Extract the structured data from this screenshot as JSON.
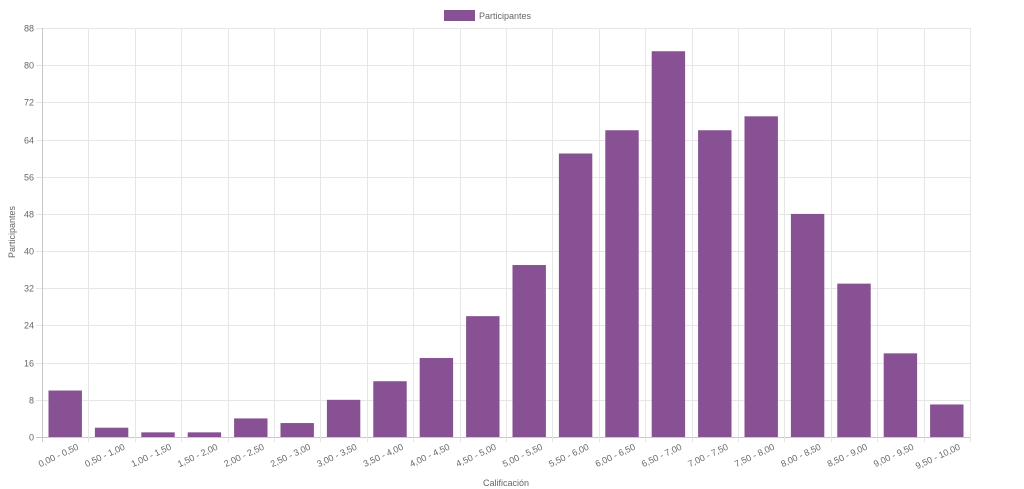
{
  "chart_data": {
    "type": "bar",
    "legend": {
      "position": "top",
      "label": "Participantes"
    },
    "xlabel": "Calificación",
    "ylabel": "Participantes",
    "ylim": [
      0,
      88
    ],
    "yticks": [
      0,
      8,
      16,
      24,
      32,
      40,
      48,
      56,
      64,
      72,
      80,
      88
    ],
    "grid": true,
    "bar_color": "#875193",
    "categories": [
      "0,00 - 0,50",
      "0,50 - 1,00",
      "1,00 - 1,50",
      "1,50 - 2,00",
      "2,00 - 2,50",
      "2,50 - 3,00",
      "3,00 - 3,50",
      "3,50 - 4,00",
      "4,00 - 4,50",
      "4,50 - 5,00",
      "5,00 - 5,50",
      "5,50 - 6,00",
      "6,00 - 6,50",
      "6,50 - 7,00",
      "7,00 - 7,50",
      "7,50 - 8,00",
      "8,00 - 8,50",
      "8,50 - 9,00",
      "9,00 - 9,50",
      "9,50 - 10,00"
    ],
    "series": [
      {
        "name": "Participantes",
        "values": [
          10,
          2,
          1,
          1,
          4,
          3,
          8,
          12,
          17,
          26,
          37,
          61,
          66,
          83,
          66,
          69,
          48,
          33,
          18,
          7
        ]
      }
    ]
  }
}
